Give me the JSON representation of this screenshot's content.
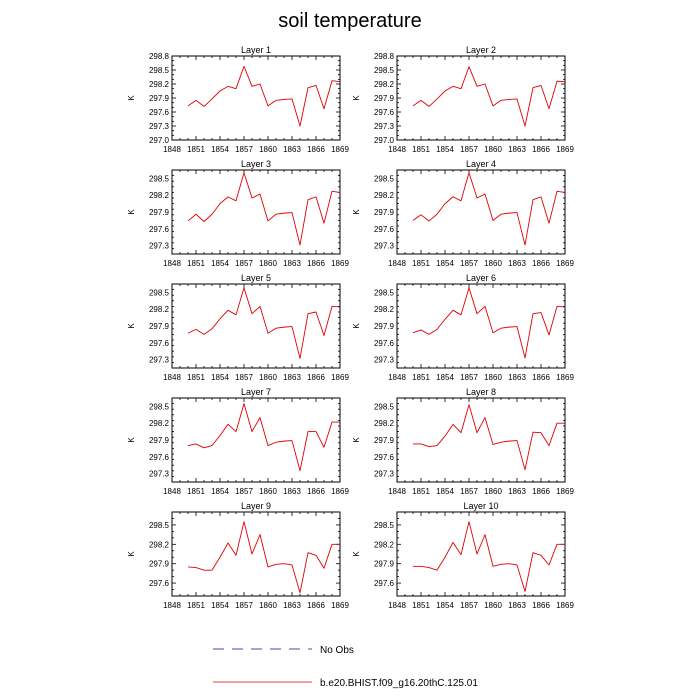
{
  "figure": {
    "title": "soil temperature"
  },
  "legend": {
    "items": [
      {
        "label": "No Obs",
        "style": "dashed",
        "color": "#4a4ab0"
      },
      {
        "label": "b.e20.BHIST.f09_g16.20thC.125.01",
        "style": "solid",
        "color": "#e00000"
      }
    ]
  },
  "chart_data": [
    {
      "type": "line",
      "title": "Layer 1",
      "ylabel": "K",
      "xlim": [
        1848,
        1869
      ],
      "ylim": [
        297.0,
        298.8
      ],
      "x_ticks": [
        1848,
        1851,
        1854,
        1857,
        1860,
        1863,
        1866,
        1869
      ],
      "y_ticks": [
        "297.0",
        "297.3",
        "297.6",
        "297.9",
        "298.2",
        "298.5",
        "298.8"
      ],
      "series": [
        {
          "color": "#e00000",
          "x": [
            1850,
            1851,
            1852,
            1853,
            1854,
            1855,
            1856,
            1857,
            1858,
            1859,
            1860,
            1861,
            1862,
            1863,
            1864,
            1865,
            1866,
            1867,
            1868,
            1869
          ],
          "y": [
            297.73,
            297.85,
            297.72,
            297.88,
            298.05,
            298.15,
            298.1,
            298.58,
            298.15,
            298.2,
            297.73,
            297.85,
            297.87,
            297.88,
            297.3,
            298.12,
            298.17,
            297.67,
            298.27,
            298.25
          ]
        }
      ]
    },
    {
      "type": "line",
      "title": "Layer 2",
      "ylabel": "K",
      "xlim": [
        1848,
        1869
      ],
      "ylim": [
        297.0,
        298.8
      ],
      "x_ticks": [
        1848,
        1851,
        1854,
        1857,
        1860,
        1863,
        1866,
        1869
      ],
      "y_ticks": [
        "297.0",
        "297.3",
        "297.6",
        "297.9",
        "298.2",
        "298.5",
        "298.8"
      ],
      "series": [
        {
          "color": "#e00000",
          "x": [
            1850,
            1851,
            1852,
            1853,
            1854,
            1855,
            1856,
            1857,
            1858,
            1859,
            1860,
            1861,
            1862,
            1863,
            1864,
            1865,
            1866,
            1867,
            1868,
            1869
          ],
          "y": [
            297.73,
            297.85,
            297.72,
            297.88,
            298.05,
            298.15,
            298.1,
            298.57,
            298.15,
            298.2,
            297.73,
            297.85,
            297.87,
            297.88,
            297.3,
            298.12,
            298.17,
            297.67,
            298.26,
            298.25
          ]
        }
      ]
    },
    {
      "type": "line",
      "title": "Layer 3",
      "ylabel": "K",
      "xlim": [
        1848,
        1869
      ],
      "ylim": [
        297.15,
        298.65
      ],
      "x_ticks": [
        1848,
        1851,
        1854,
        1857,
        1860,
        1863,
        1866,
        1869
      ],
      "y_ticks": [
        "297.3",
        "297.6",
        "297.9",
        "298.2",
        "298.5"
      ],
      "series": [
        {
          "color": "#e00000",
          "x": [
            1850,
            1851,
            1852,
            1853,
            1854,
            1855,
            1856,
            1857,
            1858,
            1859,
            1860,
            1861,
            1862,
            1863,
            1864,
            1865,
            1866,
            1867,
            1868,
            1869
          ],
          "y": [
            297.74,
            297.86,
            297.73,
            297.86,
            298.05,
            298.17,
            298.1,
            298.6,
            298.15,
            298.22,
            297.74,
            297.86,
            297.88,
            297.89,
            297.31,
            298.12,
            298.17,
            297.7,
            298.27,
            298.25
          ]
        }
      ]
    },
    {
      "type": "line",
      "title": "Layer 4",
      "ylabel": "K",
      "xlim": [
        1848,
        1869
      ],
      "ylim": [
        297.15,
        298.65
      ],
      "x_ticks": [
        1848,
        1851,
        1854,
        1857,
        1860,
        1863,
        1866,
        1869
      ],
      "y_ticks": [
        "297.3",
        "297.6",
        "297.9",
        "298.2",
        "298.5"
      ],
      "series": [
        {
          "color": "#e00000",
          "x": [
            1850,
            1851,
            1852,
            1853,
            1854,
            1855,
            1856,
            1857,
            1858,
            1859,
            1860,
            1861,
            1862,
            1863,
            1864,
            1865,
            1866,
            1867,
            1868,
            1869
          ],
          "y": [
            297.75,
            297.85,
            297.74,
            297.86,
            298.05,
            298.17,
            298.1,
            298.6,
            298.15,
            298.22,
            297.75,
            297.86,
            297.88,
            297.89,
            297.31,
            298.12,
            298.17,
            297.7,
            298.27,
            298.25
          ]
        }
      ]
    },
    {
      "type": "line",
      "title": "Layer 5",
      "ylabel": "K",
      "xlim": [
        1848,
        1869
      ],
      "ylim": [
        297.15,
        298.65
      ],
      "x_ticks": [
        1848,
        1851,
        1854,
        1857,
        1860,
        1863,
        1866,
        1869
      ],
      "y_ticks": [
        "297.3",
        "297.6",
        "297.9",
        "298.2",
        "298.5"
      ],
      "series": [
        {
          "color": "#e00000",
          "x": [
            1850,
            1851,
            1852,
            1853,
            1854,
            1855,
            1856,
            1857,
            1858,
            1859,
            1860,
            1861,
            1862,
            1863,
            1864,
            1865,
            1866,
            1867,
            1868,
            1869
          ],
          "y": [
            297.77,
            297.84,
            297.75,
            297.85,
            298.03,
            298.18,
            298.1,
            298.58,
            298.12,
            298.25,
            297.77,
            297.86,
            297.88,
            297.89,
            297.32,
            298.12,
            298.15,
            297.73,
            298.25,
            298.24
          ]
        }
      ]
    },
    {
      "type": "line",
      "title": "Layer 6",
      "ylabel": "K",
      "xlim": [
        1848,
        1869
      ],
      "ylim": [
        297.15,
        298.65
      ],
      "x_ticks": [
        1848,
        1851,
        1854,
        1857,
        1860,
        1863,
        1866,
        1869
      ],
      "y_ticks": [
        "297.3",
        "297.6",
        "297.9",
        "298.2",
        "298.5"
      ],
      "series": [
        {
          "color": "#e00000",
          "x": [
            1850,
            1851,
            1852,
            1853,
            1854,
            1855,
            1856,
            1857,
            1858,
            1859,
            1860,
            1861,
            1862,
            1863,
            1864,
            1865,
            1866,
            1867,
            1868,
            1869
          ],
          "y": [
            297.78,
            297.83,
            297.75,
            297.84,
            298.02,
            298.18,
            298.1,
            298.58,
            298.12,
            298.25,
            297.78,
            297.86,
            297.88,
            297.89,
            297.33,
            298.12,
            298.14,
            297.74,
            298.25,
            298.24
          ]
        }
      ]
    },
    {
      "type": "line",
      "title": "Layer 7",
      "ylabel": "K",
      "xlim": [
        1848,
        1869
      ],
      "ylim": [
        297.15,
        298.65
      ],
      "x_ticks": [
        1848,
        1851,
        1854,
        1857,
        1860,
        1863,
        1866,
        1869
      ],
      "y_ticks": [
        "297.3",
        "297.6",
        "297.9",
        "298.2",
        "298.5"
      ],
      "series": [
        {
          "color": "#e00000",
          "x": [
            1850,
            1851,
            1852,
            1853,
            1854,
            1855,
            1856,
            1857,
            1858,
            1859,
            1860,
            1861,
            1862,
            1863,
            1864,
            1865,
            1866,
            1867,
            1868,
            1869
          ],
          "y": [
            297.8,
            297.83,
            297.76,
            297.8,
            297.98,
            298.18,
            298.05,
            298.55,
            298.05,
            298.3,
            297.8,
            297.86,
            297.88,
            297.89,
            297.35,
            298.05,
            298.05,
            297.77,
            298.22,
            298.22
          ]
        }
      ]
    },
    {
      "type": "line",
      "title": "Layer 8",
      "ylabel": "K",
      "xlim": [
        1848,
        1869
      ],
      "ylim": [
        297.15,
        298.65
      ],
      "x_ticks": [
        1848,
        1851,
        1854,
        1857,
        1860,
        1863,
        1866,
        1869
      ],
      "y_ticks": [
        "297.3",
        "297.6",
        "297.9",
        "298.2",
        "298.5"
      ],
      "series": [
        {
          "color": "#e00000",
          "x": [
            1850,
            1851,
            1852,
            1853,
            1854,
            1855,
            1856,
            1857,
            1858,
            1859,
            1860,
            1861,
            1862,
            1863,
            1864,
            1865,
            1866,
            1867,
            1868,
            1869
          ],
          "y": [
            297.83,
            297.83,
            297.78,
            297.8,
            297.97,
            298.18,
            298.03,
            298.53,
            298.03,
            298.3,
            297.82,
            297.86,
            297.88,
            297.89,
            297.37,
            298.04,
            298.03,
            297.8,
            298.2,
            298.2
          ]
        }
      ]
    },
    {
      "type": "line",
      "title": "Layer 9",
      "ylabel": "K",
      "xlim": [
        1848,
        1869
      ],
      "ylim": [
        297.4,
        298.7
      ],
      "x_ticks": [
        1848,
        1851,
        1854,
        1857,
        1860,
        1863,
        1866,
        1869
      ],
      "y_ticks": [
        "297.6",
        "297.9",
        "298.2",
        "298.5"
      ],
      "series": [
        {
          "color": "#e00000",
          "x": [
            1850,
            1851,
            1852,
            1853,
            1854,
            1855,
            1856,
            1857,
            1858,
            1859,
            1860,
            1861,
            1862,
            1863,
            1864,
            1865,
            1866,
            1867,
            1868,
            1869
          ],
          "y": [
            297.85,
            297.84,
            297.8,
            297.8,
            298.0,
            298.22,
            298.03,
            298.55,
            298.05,
            298.35,
            297.85,
            297.89,
            297.9,
            297.88,
            297.45,
            298.07,
            298.03,
            297.83,
            298.2,
            298.2
          ]
        }
      ]
    },
    {
      "type": "line",
      "title": "Layer 10",
      "ylabel": "K",
      "xlim": [
        1848,
        1869
      ],
      "ylim": [
        297.4,
        298.7
      ],
      "x_ticks": [
        1848,
        1851,
        1854,
        1857,
        1860,
        1863,
        1866,
        1869
      ],
      "y_ticks": [
        "297.6",
        "297.9",
        "298.2",
        "298.5"
      ],
      "series": [
        {
          "color": "#e00000",
          "x": [
            1850,
            1851,
            1852,
            1853,
            1854,
            1855,
            1856,
            1857,
            1858,
            1859,
            1860,
            1861,
            1862,
            1863,
            1864,
            1865,
            1866,
            1867,
            1868,
            1869
          ],
          "y": [
            297.86,
            297.86,
            297.84,
            297.8,
            298.0,
            298.23,
            298.04,
            298.55,
            298.05,
            298.35,
            297.86,
            297.89,
            297.9,
            297.88,
            297.47,
            298.07,
            298.03,
            297.88,
            298.2,
            298.2
          ]
        }
      ]
    }
  ]
}
